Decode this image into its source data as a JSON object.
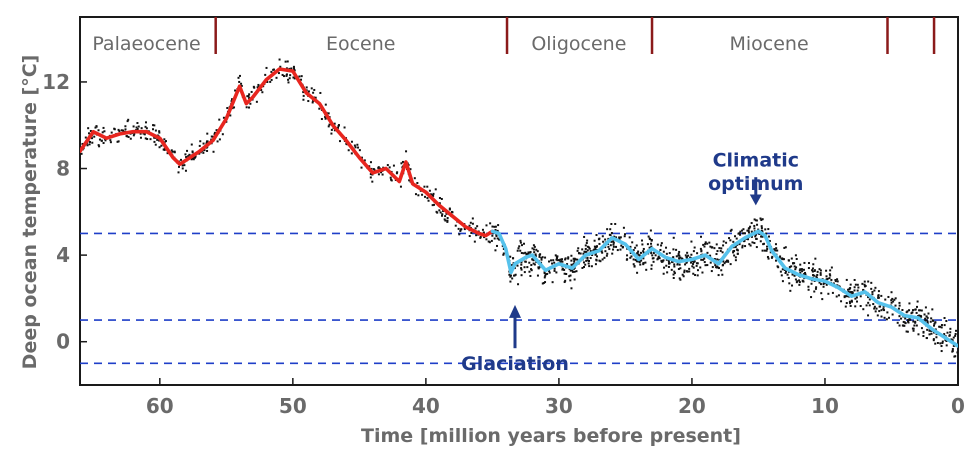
{
  "chart_data": {
    "type": "line",
    "xlabel": "Time [million years before present]",
    "ylabel": "Deep ocean temperature [°C]",
    "xlim": [
      66,
      0
    ],
    "ylim": [
      -2,
      15
    ],
    "x_ticks": [
      "60",
      "50",
      "40",
      "30",
      "20",
      "10",
      "0"
    ],
    "y_ticks": [
      "12",
      "8",
      "4",
      "0"
    ],
    "epochs": [
      {
        "name": "Palaeocene",
        "center": 61.0
      },
      {
        "name": "Eocene",
        "center": 44.9
      },
      {
        "name": "Oligocene",
        "center": 28.5
      },
      {
        "name": "Miocene",
        "center": 14.2
      }
    ],
    "epoch_boundaries": [
      55.8,
      33.9,
      23.0,
      5.3,
      1.8
    ],
    "reference_lines": [
      5,
      1,
      -1
    ],
    "annotations": [
      {
        "text": "Glaciation",
        "x": 33.3,
        "y": -1.3
      },
      {
        "text": "Climatic",
        "x": 15.2,
        "y": 8.1
      },
      {
        "text": "optimum",
        "x": 15.2,
        "y": 7.0
      }
    ],
    "series": [
      {
        "x": [
          66,
          65,
          64,
          63,
          62,
          61,
          60,
          59,
          58.5,
          57,
          56,
          55,
          54,
          53.5,
          53,
          52,
          51,
          50,
          49,
          48,
          47,
          46,
          45,
          44,
          43,
          42,
          41.5,
          41,
          40,
          39,
          38,
          37,
          36,
          35.5,
          35
        ],
        "y": [
          8.8,
          9.7,
          9.4,
          9.6,
          9.7,
          9.7,
          9.4,
          8.5,
          8.2,
          8.8,
          9.3,
          10.3,
          11.8,
          11.0,
          11.3,
          12.1,
          12.6,
          12.5,
          11.5,
          11.0,
          10.0,
          9.3,
          8.5,
          7.8,
          8.0,
          7.4,
          8.3,
          7.3,
          6.9,
          6.3,
          5.8,
          5.3,
          5.0,
          4.9,
          5.1
        ],
        "color": "#e8261f"
      },
      {
        "x": [
          35,
          34.5,
          34,
          33.6,
          33.3,
          32.5,
          32,
          31,
          30,
          29,
          28,
          27,
          26,
          25,
          24,
          23,
          22,
          21,
          20,
          19,
          18,
          17,
          16,
          15,
          14.5,
          14,
          13,
          12,
          11,
          10,
          9,
          8,
          7,
          6,
          5,
          4,
          3,
          2,
          1,
          0.5,
          0
        ],
        "y": [
          5.1,
          5.0,
          4.3,
          3.2,
          3.6,
          3.9,
          4.0,
          3.3,
          3.6,
          3.4,
          4.0,
          4.2,
          4.8,
          4.5,
          3.8,
          4.3,
          3.9,
          3.7,
          3.8,
          4.0,
          3.6,
          4.4,
          4.8,
          5.1,
          4.9,
          4.2,
          3.4,
          3.1,
          2.9,
          2.8,
          2.5,
          2.1,
          2.3,
          1.8,
          1.6,
          1.2,
          1.1,
          0.6,
          0.2,
          0.0,
          -0.2
        ],
        "color": "#56c2ec"
      }
    ]
  }
}
